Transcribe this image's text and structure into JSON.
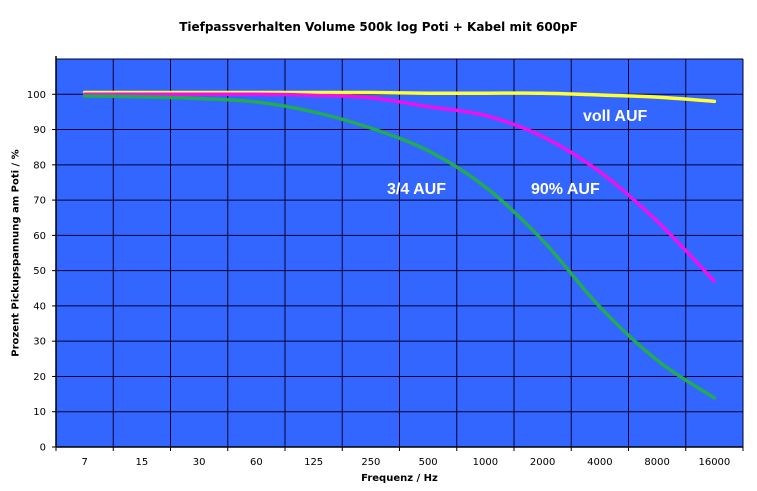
{
  "chart_data": {
    "type": "line",
    "title": "Tiefpassverhalten Volume 500k log Poti + Kabel mit 600pF",
    "xlabel": "Frequenz / Hz",
    "ylabel": "Prozent Pickupspannung am Poti / %",
    "categories": [
      "7",
      "15",
      "30",
      "60",
      "125",
      "250",
      "500",
      "1000",
      "2000",
      "4000",
      "8000",
      "16000"
    ],
    "ylim": [
      0,
      110
    ],
    "yticks": [
      0,
      10,
      20,
      30,
      40,
      50,
      60,
      70,
      80,
      90,
      100
    ],
    "grid": true,
    "background": "#3366ff",
    "series": [
      {
        "name": "voll AUF",
        "color": "#ffff33",
        "values": [
          100.5,
          100.5,
          100.5,
          100.5,
          100.5,
          100.5,
          100.3,
          100.3,
          100.3,
          99.8,
          99.2,
          98
        ]
      },
      {
        "name": "90% AUF",
        "color": "#ee11ee",
        "values": [
          100,
          100,
          100,
          100,
          99.7,
          99,
          96.5,
          94,
          88,
          78,
          64,
          47
        ]
      },
      {
        "name": "3/4 AUF",
        "color": "#22aa55",
        "values": [
          99.5,
          99.3,
          98.8,
          97.8,
          95,
          90.4,
          84,
          73.7,
          58.6,
          39.7,
          24.6,
          13.9
        ]
      }
    ],
    "annotations": [
      "voll AUF",
      "90% AUF",
      "3/4 AUF"
    ]
  }
}
